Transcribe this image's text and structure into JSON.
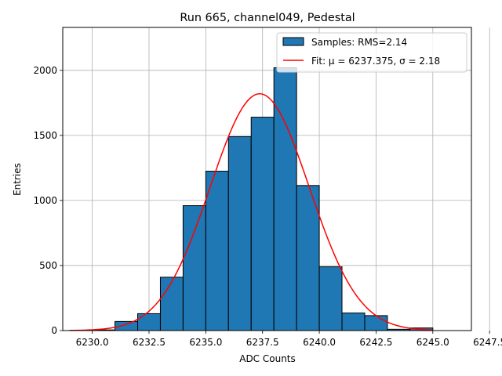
{
  "chart_data": {
    "type": "bar",
    "title": "Run 665, channel049, Pedestal",
    "xlabel": "ADC Counts",
    "ylabel": "Entries",
    "xlim": [
      6228.7,
      6246.7
    ],
    "ylim": [
      0,
      2330
    ],
    "grid": true,
    "legend_position": "top-right",
    "x_ticks": [
      6230.0,
      6232.5,
      6235.0,
      6237.5,
      6240.0,
      6242.5,
      6245.0,
      6247.5
    ],
    "x_tick_labels": [
      "6230.0",
      "6232.5",
      "6235.0",
      "6237.5",
      "6240.0",
      "6242.5",
      "6245.0",
      "6247.5"
    ],
    "y_ticks": [
      0,
      500,
      1000,
      1500,
      2000
    ],
    "y_tick_labels": [
      "0",
      "500",
      "1000",
      "1500",
      "2000"
    ],
    "histogram": {
      "name": "Samples: RMS=2.14",
      "color": "#1f77b4",
      "edge_color": "#000000",
      "bins": [
        {
          "x0": 6230,
          "x1": 6231,
          "count": 5
        },
        {
          "x0": 6231,
          "x1": 6232,
          "count": 70
        },
        {
          "x0": 6232,
          "x1": 6233,
          "count": 130
        },
        {
          "x0": 6233,
          "x1": 6234,
          "count": 410
        },
        {
          "x0": 6234,
          "x1": 6235,
          "count": 960
        },
        {
          "x0": 6235,
          "x1": 6236,
          "count": 1225
        },
        {
          "x0": 6236,
          "x1": 6237,
          "count": 1490
        },
        {
          "x0": 6237,
          "x1": 6238,
          "count": 1640
        },
        {
          "x0": 6238,
          "x1": 6239,
          "count": 2020
        },
        {
          "x0": 6239,
          "x1": 6240,
          "count": 1115
        },
        {
          "x0": 6240,
          "x1": 6241,
          "count": 490
        },
        {
          "x0": 6241,
          "x1": 6242,
          "count": 135
        },
        {
          "x0": 6242,
          "x1": 6243,
          "count": 115
        },
        {
          "x0": 6243,
          "x1": 6244,
          "count": 10
        },
        {
          "x0": 6244,
          "x1": 6245,
          "count": 20
        }
      ]
    },
    "fit": {
      "name": "Fit: μ = 6237.375, σ = 2.18",
      "color": "#ff0000",
      "mu": 6237.375,
      "sigma": 2.18,
      "amplitude": 1820,
      "x_range": [
        6229.0,
        6245.0
      ]
    }
  }
}
